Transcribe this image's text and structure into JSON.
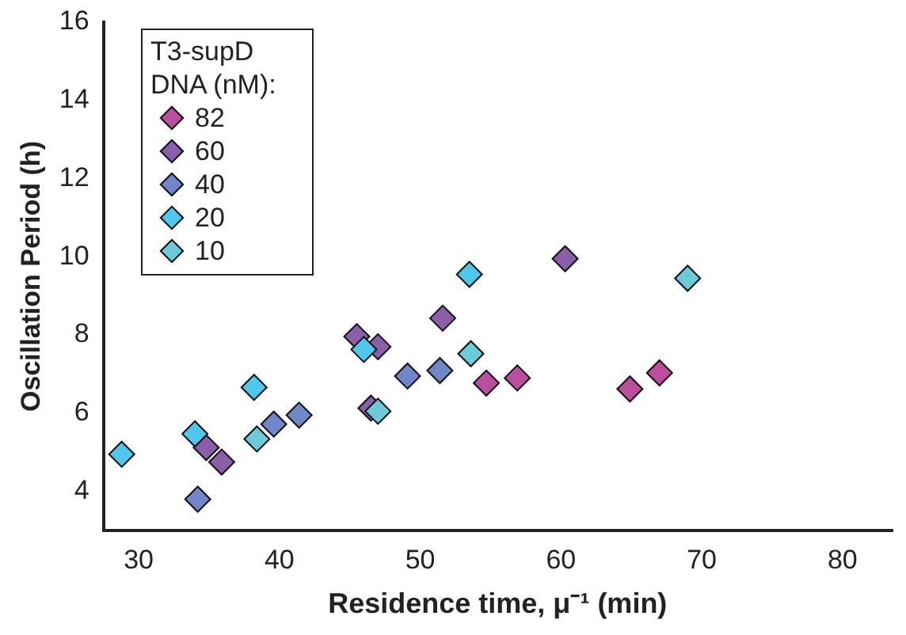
{
  "chart_data": {
    "type": "scatter",
    "xlabel": "Residence time, μ⁻¹ (min)",
    "ylabel": "Oscillation Period (h)",
    "legend_title": "T3-supD DNA (nM):",
    "legend": "top left",
    "marker": "diamond",
    "grid": false,
    "xlim": [
      27.5,
      83.5
    ],
    "xticks": [
      30,
      40,
      50,
      60,
      70,
      80
    ],
    "ylim": [
      3,
      16
    ],
    "yticks": [
      4,
      6,
      8,
      10,
      12,
      14,
      16
    ],
    "series": [
      {
        "name": "82",
        "color": "#bb4f9e",
        "x": [
          54.7,
          56.9,
          64.9,
          67.0
        ],
        "values": [
          6.77,
          6.9,
          6.62,
          7.03
        ]
      },
      {
        "name": "60",
        "color": "#8a5ea8",
        "x": [
          34.8,
          35.9,
          45.5,
          47.0,
          46.5,
          51.6,
          60.3
        ],
        "values": [
          5.12,
          4.75,
          7.96,
          7.7,
          6.13,
          8.43,
          9.95
        ]
      },
      {
        "name": "40",
        "color": "#6f87c8",
        "x": [
          34.2,
          39.6,
          41.4,
          49.1,
          51.4
        ],
        "values": [
          3.8,
          5.72,
          5.95,
          6.95,
          7.09
        ]
      },
      {
        "name": "20",
        "color": "#4fc8ee",
        "x": [
          28.8,
          34.0,
          38.2,
          46.0,
          53.5
        ],
        "values": [
          4.95,
          5.47,
          6.66,
          7.63,
          9.55
        ]
      },
      {
        "name": "10",
        "color": "#6ccbd8",
        "x": [
          38.4,
          47.0,
          53.6,
          69.0
        ],
        "values": [
          5.34,
          6.05,
          7.52,
          9.45
        ]
      }
    ]
  }
}
